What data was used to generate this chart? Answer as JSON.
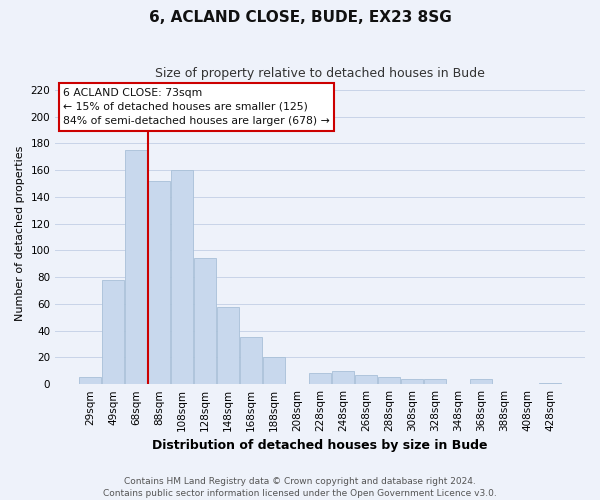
{
  "title": "6, ACLAND CLOSE, BUDE, EX23 8SG",
  "subtitle": "Size of property relative to detached houses in Bude",
  "xlabel": "Distribution of detached houses by size in Bude",
  "ylabel": "Number of detached properties",
  "bar_labels": [
    "29sqm",
    "49sqm",
    "68sqm",
    "88sqm",
    "108sqm",
    "128sqm",
    "148sqm",
    "168sqm",
    "188sqm",
    "208sqm",
    "228sqm",
    "248sqm",
    "268sqm",
    "288sqm",
    "308sqm",
    "328sqm",
    "348sqm",
    "368sqm",
    "388sqm",
    "408sqm",
    "428sqm"
  ],
  "bar_values": [
    5,
    78,
    175,
    152,
    160,
    94,
    58,
    35,
    20,
    0,
    8,
    10,
    7,
    5,
    4,
    4,
    0,
    4,
    0,
    0,
    1
  ],
  "bar_color": "#c8d8ed",
  "bar_edge_color": "#a8c0d8",
  "grid_color": "#c8d4e8",
  "vline_x_index": 2,
  "vline_color": "#cc0000",
  "annotation_title": "6 ACLAND CLOSE: 73sqm",
  "annotation_line1": "← 15% of detached houses are smaller (125)",
  "annotation_line2": "84% of semi-detached houses are larger (678) →",
  "annotation_box_facecolor": "#ffffff",
  "annotation_box_edgecolor": "#cc0000",
  "ylim": [
    0,
    225
  ],
  "yticks": [
    0,
    20,
    40,
    60,
    80,
    100,
    120,
    140,
    160,
    180,
    200,
    220
  ],
  "footer1": "Contains HM Land Registry data © Crown copyright and database right 2024.",
  "footer2": "Contains public sector information licensed under the Open Government Licence v3.0.",
  "bg_color": "#eef2fa",
  "title_fontsize": 11,
  "subtitle_fontsize": 9,
  "xlabel_fontsize": 9,
  "ylabel_fontsize": 8,
  "tick_fontsize": 7.5,
  "footer_fontsize": 6.5
}
